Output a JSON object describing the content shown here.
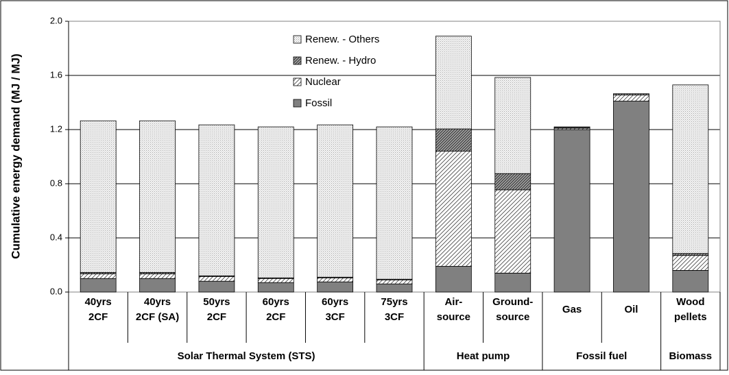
{
  "chart_data": {
    "type": "stacked_bar",
    "y_label": "Cumulative energy demand (MJ / MJ)",
    "categories": [
      [
        "40yrs",
        "2CF"
      ],
      [
        "40yrs",
        "2CF (SA)"
      ],
      [
        "50yrs",
        "2CF"
      ],
      [
        "60yrs",
        "2CF"
      ],
      [
        "60yrs",
        "3CF"
      ],
      [
        "75yrs",
        "3CF"
      ],
      [
        "Air-",
        "source"
      ],
      [
        "Ground-",
        "source"
      ],
      [
        "Gas"
      ],
      [
        "Oil"
      ],
      [
        "Wood",
        "pellets"
      ]
    ],
    "groups": [
      {
        "name": "Solar Thermal System (STS)",
        "size": 6
      },
      {
        "name": "Heat pump",
        "size": 2
      },
      {
        "name": "Fossil fuel",
        "size": 2
      },
      {
        "name": "Biomass",
        "size": 1
      }
    ],
    "series": [
      {
        "name": "Fossil",
        "color": "#808080",
        "values": [
          0.1,
          0.1,
          0.08,
          0.07,
          0.075,
          0.06,
          0.19,
          0.14,
          1.2,
          1.41,
          0.16
        ]
      },
      {
        "name": "Nuclear",
        "color": "#b0b0b0",
        "values": [
          0.035,
          0.035,
          0.035,
          0.03,
          0.03,
          0.03,
          0.85,
          0.615,
          0.01,
          0.045,
          0.11
        ]
      },
      {
        "name": "Renew. - Hydro",
        "color": "#a0a0a0",
        "values": [
          0.01,
          0.01,
          0.005,
          0.005,
          0.005,
          0.005,
          0.165,
          0.12,
          0.005,
          0.01,
          0.015
        ]
      },
      {
        "name": "Renew. - Others",
        "color": "#dcdcdc",
        "values": [
          1.12,
          1.12,
          1.115,
          1.115,
          1.125,
          1.125,
          0.685,
          0.71,
          0.005,
          0,
          1.245
        ]
      }
    ],
    "ylim": [
      0,
      2.0
    ],
    "yticks": [
      {
        "value": 0,
        "label": "0.0"
      },
      0.4,
      0.8,
      1.2,
      1.6,
      {
        "value": 2.0,
        "label": "2.0"
      }
    ],
    "grid": true
  }
}
